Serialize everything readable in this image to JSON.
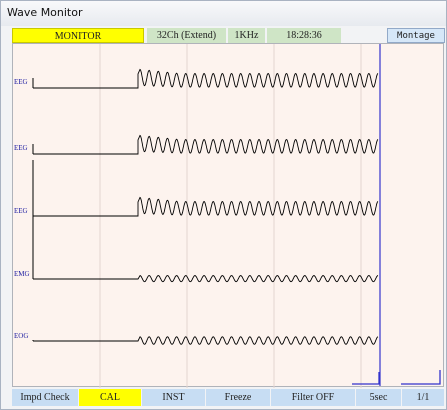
{
  "window": {
    "title": "Wave Monitor"
  },
  "status_bar": {
    "mode": "MONITOR",
    "channels": "32Ch (Extend)",
    "sampling": "1KHz",
    "time": "18:28:36",
    "montage_label": "Montage"
  },
  "channels": [
    {
      "label": "EEG",
      "cal_amplitude": 1.0,
      "wave_amplitude": 1.0
    },
    {
      "label": "EEG",
      "cal_amplitude": 1.0,
      "wave_amplitude": 1.0
    },
    {
      "label": "EEG",
      "cal_amplitude": 1.0,
      "wave_amplitude": 1.0
    },
    {
      "label": "EMG",
      "cal_amplitude": 0.0,
      "wave_amplitude": 0.45
    },
    {
      "label": "EOG",
      "cal_amplitude": 0.0,
      "wave_amplitude": 0.55
    }
  ],
  "colors": {
    "plot_background": "#fdf3ee",
    "trace": "#000000",
    "cursor": "#3333cc",
    "highlight": "#ffff00",
    "button": "#c7ddf3"
  },
  "toolbar": {
    "impd_check": "Impd Check",
    "cal": "CAL",
    "inst": "INST",
    "freeze": "Freeze",
    "filter": "Filter OFF",
    "time_scale": "5sec",
    "page": "1/1"
  }
}
